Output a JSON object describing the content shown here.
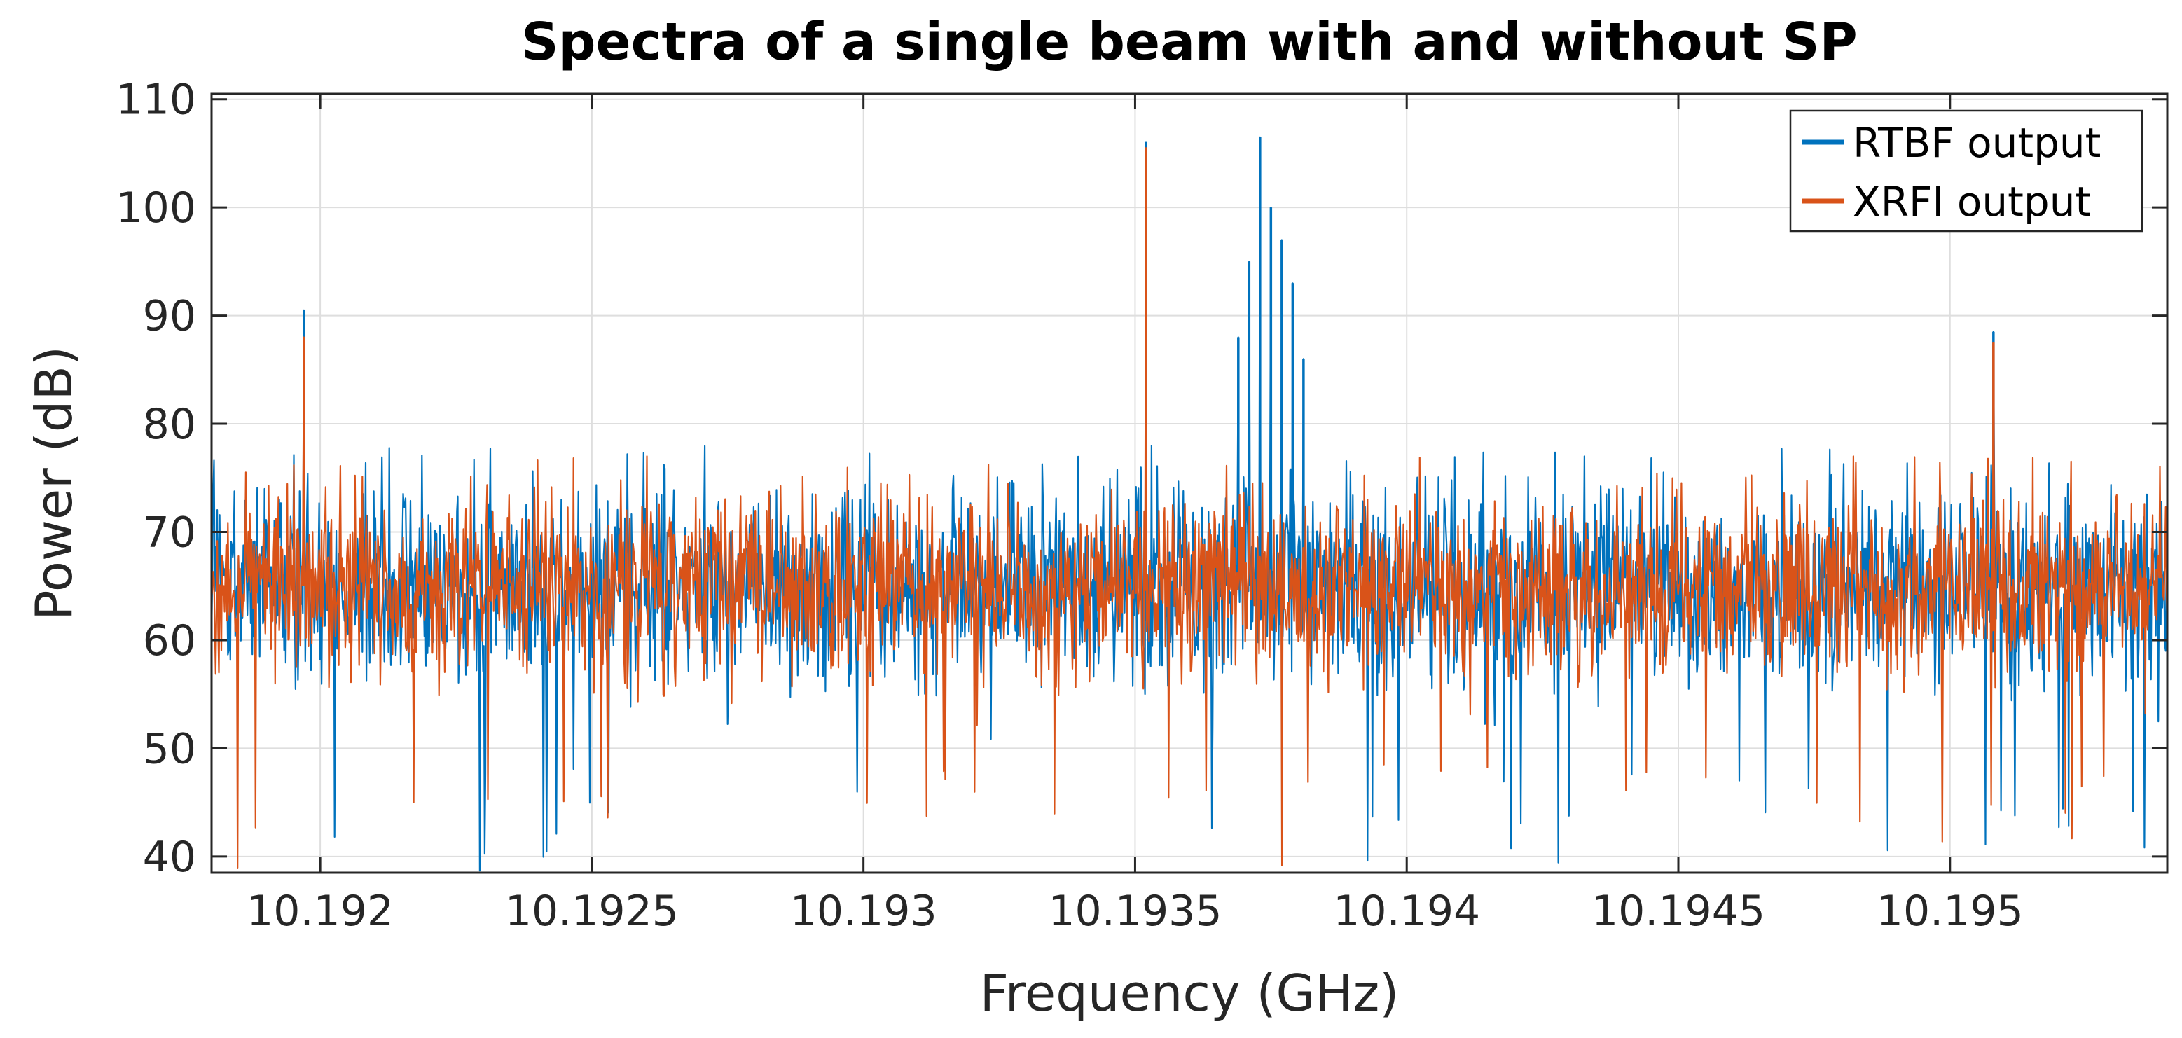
{
  "chart_data": {
    "type": "line",
    "title": "Spectra of a single beam with and without SP",
    "xlabel": "Frequency (GHz)",
    "ylabel": "Power (dB)",
    "xlim": [
      10.1918,
      10.1954
    ],
    "ylim": [
      38.5,
      110.5
    ],
    "xticks": [
      10.192,
      10.1925,
      10.193,
      10.1935,
      10.194,
      10.1945,
      10.195
    ],
    "xtick_labels": [
      "10.192",
      "10.1925",
      "10.193",
      "10.1935",
      "10.194",
      "10.1945",
      "10.195"
    ],
    "yticks": [
      40,
      50,
      60,
      70,
      80,
      90,
      100,
      110
    ],
    "ytick_labels": [
      "40",
      "50",
      "60",
      "70",
      "80",
      "90",
      "100",
      "110"
    ],
    "grid": true,
    "legend_position": "top-right",
    "series": [
      {
        "name": "RTBF output",
        "color": "#0072BD",
        "noise_floor": {
          "mean_db": 65,
          "typical_range_db": [
            55,
            75
          ],
          "min_db": 38.5,
          "max_db": 78
        },
        "peaks": [
          {
            "x": 10.19197,
            "y": 90.5
          },
          {
            "x": 10.19352,
            "y": 106.0
          },
          {
            "x": 10.19373,
            "y": 106.5,
            "note": ""
          },
          {
            "x": 10.19375,
            "y": 100.0
          },
          {
            "x": 10.19377,
            "y": 97.0
          },
          {
            "x": 10.19371,
            "y": 95.0
          },
          {
            "x": 10.19379,
            "y": 93.0
          },
          {
            "x": 10.19369,
            "y": 88.0
          },
          {
            "x": 10.19381,
            "y": 86.0
          },
          {
            "x": 10.19508,
            "y": 88.5
          }
        ]
      },
      {
        "name": "XRFI output",
        "color": "#D95319",
        "noise_floor": {
          "mean_db": 65,
          "typical_range_db": [
            56,
            74
          ],
          "min_db": 38.5,
          "max_db": 77
        },
        "peaks": [
          {
            "x": 10.19197,
            "y": 88.0
          },
          {
            "x": 10.19352,
            "y": 105.5
          },
          {
            "x": 10.19508,
            "y": 87.5
          }
        ]
      }
    ]
  }
}
